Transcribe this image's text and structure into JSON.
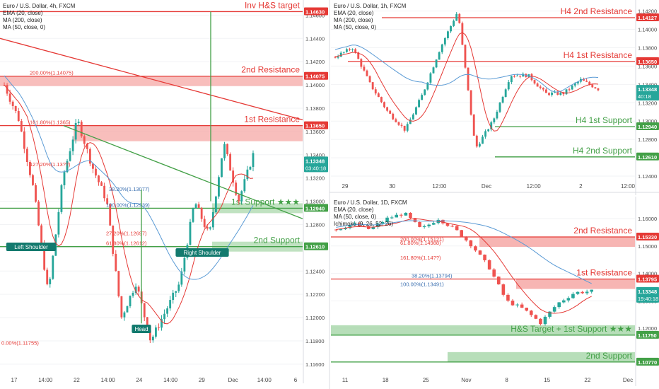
{
  "colors": {
    "up": "#26a69a",
    "down": "#ef5350",
    "resistance": "#e53935",
    "support": "#43a047",
    "zone_red": "#f6a8a6",
    "zone_green": "#a5d6a7",
    "ema": "#e53935",
    "ma200": "#5b9bd5",
    "ma50": "#6f7a86",
    "axis_text": "#4a4a4a",
    "neckline": "#43a047",
    "trend": "#e53935"
  },
  "chart_data": [
    {
      "id": "panel-4h",
      "type": "candlestick",
      "legend": [
        "Euro / U.S. Dollar, 4h, FXCM",
        "EMA (20, close)",
        "MA (200, close)",
        "MA (50, close, 0)"
      ],
      "xticks": [
        "17",
        "14:00",
        "22",
        "14:00",
        "24",
        "14:00",
        "29",
        "Dec",
        "14:00",
        "6"
      ],
      "yticks": [
        "1.14600",
        "1.14400",
        "1.14200",
        "1.14000",
        "1.13800",
        "1.13600",
        "1.13400",
        "1.13200",
        "1.13000",
        "1.12800",
        "1.12600",
        "1.12400",
        "1.12200",
        "1.12000",
        "1.11800",
        "1.11600"
      ],
      "ylim": [
        1.1152,
        1.1473
      ],
      "price_badges": [
        {
          "value": "1.14630",
          "kind": "resistance"
        },
        {
          "value": "1.14075",
          "kind": "resistance"
        },
        {
          "value": "1.13650",
          "kind": "resistance"
        },
        {
          "value": "1.13348",
          "sub": "03:40:18",
          "kind": "current"
        },
        {
          "value": "1.12940",
          "kind": "support"
        },
        {
          "value": "1.12610",
          "kind": "support"
        }
      ],
      "levels": [
        {
          "label": "Inv H&S target",
          "price": 1.1463,
          "kind": "resistance"
        },
        {
          "label": "2nd Resistance",
          "price": 1.14075,
          "kind": "resistance"
        },
        {
          "label": "1st Resistance",
          "price": 1.1365,
          "kind": "resistance"
        },
        {
          "label": "1st Support ★★★",
          "price": 1.1294,
          "kind": "support"
        },
        {
          "label": "2nd Support",
          "price": 1.1261,
          "kind": "support"
        }
      ],
      "fib_labels": [
        "200.00%(1.14075)",
        "161.80%(1.1365)",
        "127.20%(1.13??)",
        "38.20%(1.13077)",
        "100.00%(1.12939)",
        "27.20%(1.12697)",
        "61.80%(1.12612)",
        "0.00%(1.11755)"
      ],
      "pattern_labels": [
        "Left Shoulder",
        "Head",
        "Right Shoulder"
      ]
    },
    {
      "id": "panel-1h",
      "type": "candlestick",
      "legend": [
        "Euro / U.S. Dollar, 1h, FXCM",
        "EMA (20, close)",
        "MA (200, close)",
        "MA (50, close, 0)"
      ],
      "xticks": [
        "29",
        "30",
        "12:00",
        "Dec",
        "12:00",
        "2",
        "12:00"
      ],
      "yticks": [
        "1.14200",
        "1.14000",
        "1.13800",
        "1.13600",
        "1.13400",
        "1.13200",
        "1.13000",
        "1.12800",
        "1.12600",
        "1.12400"
      ],
      "ylim": [
        1.123,
        1.1432
      ],
      "price_badges": [
        {
          "value": "1.14127",
          "kind": "resistance"
        },
        {
          "value": "1.13650",
          "kind": "resistance"
        },
        {
          "value": "1.13348",
          "sub": "40:18",
          "kind": "current"
        },
        {
          "value": "1.12940",
          "kind": "support"
        },
        {
          "value": "1.12610",
          "kind": "support"
        }
      ],
      "levels": [
        {
          "label": "H4 2nd Resistance",
          "price": 1.14127,
          "kind": "resistance"
        },
        {
          "label": "H4 1st Resistance",
          "price": 1.1365,
          "kind": "resistance"
        },
        {
          "label": "H4 1st Support",
          "price": 1.1294,
          "kind": "support"
        },
        {
          "label": "H4 2nd Support",
          "price": 1.1261,
          "kind": "support"
        }
      ]
    },
    {
      "id": "panel-1d",
      "type": "candlestick",
      "legend": [
        "Euro / U.S. Dollar, 1D, FXCM",
        "EMA (20, close)",
        "MA (50, close, 0)",
        "Ichimoku (9, 26, 52, 26)"
      ],
      "xticks": [
        "11",
        "18",
        "25",
        "Nov",
        "8",
        "15",
        "22",
        "Dec"
      ],
      "yticks": [
        "1.16000",
        "1.15000",
        "1.14000",
        "1.13000",
        "1.12000"
      ],
      "ylim": [
        1.1025,
        1.168
      ],
      "price_badges": [
        {
          "value": "1.15330",
          "kind": "resistance"
        },
        {
          "value": "1.13795",
          "kind": "resistance"
        },
        {
          "value": "1.13348",
          "sub": "19:40:18",
          "kind": "current"
        },
        {
          "value": "1.11750",
          "kind": "support"
        },
        {
          "value": "1.10770",
          "kind": "support"
        }
      ],
      "levels": [
        {
          "label": "2nd Resistance",
          "price": 1.1533,
          "kind": "resistance"
        },
        {
          "label": "1st Resistance",
          "price": 1.13795,
          "kind": "resistance"
        },
        {
          "label": "H&S Target + 1st Support ★★★",
          "price": 1.1175,
          "kind": "support"
        },
        {
          "label": "2nd Support",
          "price": 1.1077,
          "kind": "support"
        }
      ],
      "fib_labels": [
        "200.00%(1.15121)",
        "61.80%(1.14988)",
        "161.80%(1.14??)",
        "38.20%(1.13794)",
        "100.00%(1.13491)"
      ]
    }
  ]
}
